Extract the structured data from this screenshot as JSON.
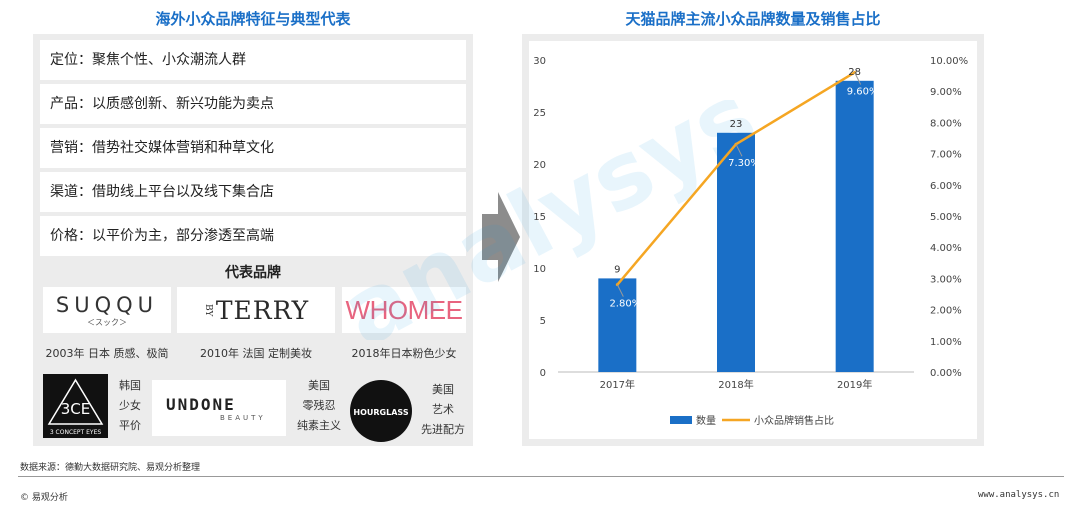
{
  "left": {
    "title": "海外小众品牌特征与典型代表",
    "features": [
      "定位：聚焦个性、小众潮流人群",
      "产品：以质感创新、新兴功能为卖点",
      "营销：借势社交媒体营销和种草文化",
      "渠道：借助线上平台以及线下集合店",
      "价格：以平价为主，部分渗透至高端"
    ],
    "brands_title": "代表品牌",
    "brands": {
      "suqqu": {
        "logo": "SUQQU",
        "sub": "＜スック＞",
        "caption": "2003年 日本 质感、极简"
      },
      "terry": {
        "logo_by": "BY",
        "logo": "TERRY",
        "caption": "2010年 法国 定制美妆"
      },
      "whomee": {
        "logo": "WHOMEE",
        "caption": "2018年日本粉色少女"
      },
      "ce": {
        "logo": "3CE",
        "logo_sub": "3 CONCEPT EYES",
        "caption": [
          "韩国",
          "少女",
          "平价"
        ]
      },
      "undone": {
        "logo": "UNDONE",
        "logo_sub": "BEAUTY",
        "caption": [
          "美国",
          "零残忍",
          "纯素主义"
        ]
      },
      "hourglass": {
        "logo": "HOURGLASS",
        "caption": [
          "美国",
          "艺术",
          "先进配方"
        ]
      }
    }
  },
  "right": {
    "title": "天猫品牌主流小众品牌数量及销售占比"
  },
  "chart_data": {
    "type": "bar",
    "title": "天猫品牌主流小众品牌数量及销售占比",
    "categories": [
      "2017年",
      "2018年",
      "2019年"
    ],
    "series": [
      {
        "name": "数量",
        "type": "bar",
        "axis": "left",
        "values": [
          9,
          23,
          28
        ],
        "labels": [
          "9",
          "23",
          "28"
        ],
        "color": "#1a6fc7"
      },
      {
        "name": "小众品牌销售占比",
        "type": "line",
        "axis": "right",
        "values": [
          2.8,
          7.3,
          9.6
        ],
        "labels": [
          "2.80%",
          "7.30%",
          "9.60%"
        ],
        "color": "#f5a623"
      }
    ],
    "y_left": {
      "min": 0,
      "max": 30,
      "ticks": [
        "0",
        "5",
        "10",
        "15",
        "20",
        "25",
        "30"
      ]
    },
    "y_right": {
      "min": 0,
      "max": 10,
      "ticks": [
        "0.00%",
        "1.00%",
        "2.00%",
        "3.00%",
        "4.00%",
        "5.00%",
        "6.00%",
        "7.00%",
        "8.00%",
        "9.00%",
        "10.00%"
      ]
    },
    "legend": "bottom",
    "grid": false
  },
  "footer": {
    "source": "数据来源：德勤大数据研究院、易观分析整理",
    "copyright": "© 易观分析",
    "url": "www.analysys.cn"
  },
  "watermark": "analysys 易观分析",
  "colors": {
    "title": "#1a6fc7",
    "bar": "#1a6fc7",
    "line": "#f5a623",
    "panel": "#ececec",
    "arrow": "#8c8c8c"
  }
}
